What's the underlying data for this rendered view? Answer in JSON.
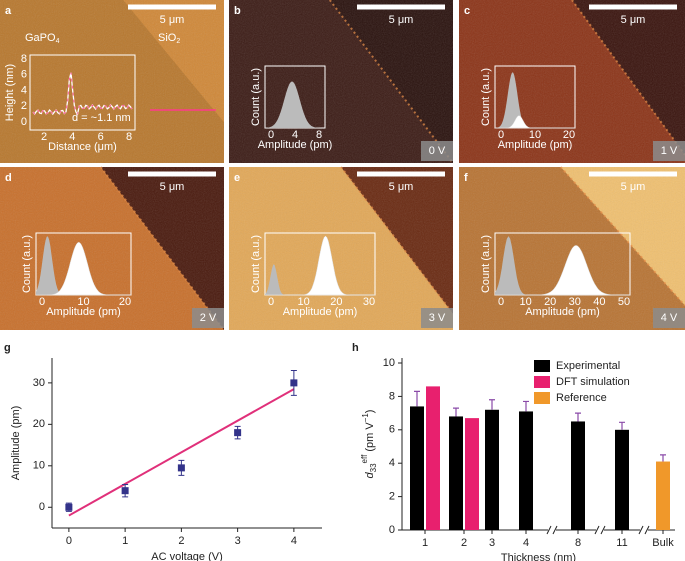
{
  "panels": [
    {
      "letter": "a",
      "scale_bar": "5 μm",
      "labels": [
        "GaPO",
        "4",
        "SiO",
        "2"
      ],
      "inset": {
        "y_label": "Height (nm)",
        "x_label": "Distance (μm)",
        "yticks": [
          "0",
          "2",
          "4",
          "6",
          "8"
        ],
        "xticks": [
          "2",
          "4",
          "6",
          "8"
        ],
        "note": "d = ~1.1 nm"
      }
    },
    {
      "letter": "b",
      "scale_bar": "5 μm",
      "voltage": "0 V",
      "inset": {
        "y_label": "Count (a.u.)",
        "x_label": "Amplitude (pm)",
        "xticks": [
          "0",
          "4",
          "8"
        ]
      }
    },
    {
      "letter": "c",
      "scale_bar": "5 μm",
      "voltage": "1 V",
      "inset": {
        "y_label": "Count (a.u.)",
        "x_label": "Amplitude (pm)",
        "xticks": [
          "0",
          "10",
          "20"
        ]
      }
    },
    {
      "letter": "d",
      "scale_bar": "5 μm",
      "voltage": "2 V",
      "inset": {
        "y_label": "Count (a.u.)",
        "x_label": "Amplitude (pm)",
        "xticks": [
          "0",
          "10",
          "20"
        ]
      }
    },
    {
      "letter": "e",
      "scale_bar": "5 μm",
      "voltage": "3 V",
      "inset": {
        "y_label": "Count (a.u.)",
        "x_label": "Amplitude (pm)",
        "xticks": [
          "0",
          "10",
          "20",
          "30"
        ]
      }
    },
    {
      "letter": "f",
      "scale_bar": "5 μm",
      "voltage": "4 V",
      "inset": {
        "y_label": "Count (a.u.)",
        "x_label": "Amplitude (pm)",
        "xticks": [
          "0",
          "10",
          "20",
          "30",
          "40",
          "50"
        ]
      }
    }
  ],
  "chart_data": [
    {
      "type": "scatter",
      "letter": "g",
      "x": [
        0,
        1,
        2,
        3,
        4
      ],
      "series": [
        {
          "color": "#33338a",
          "values": [
            0,
            4,
            9.5,
            18,
            30
          ],
          "errors": [
            1,
            1.5,
            1.8,
            1.5,
            3
          ]
        }
      ],
      "fit": {
        "color": "#e0307a",
        "x": [
          0,
          4
        ],
        "values": [
          -2,
          28.5
        ]
      },
      "xlim": [
        -0.3,
        4.5
      ],
      "ylim": [
        -5,
        36
      ],
      "xticks": [
        0,
        1,
        2,
        3,
        4
      ],
      "yticks": [
        0,
        10,
        20,
        30
      ],
      "x_label": "AC voltage (V)",
      "y_label": "Amplitude (pm)"
    },
    {
      "type": "bar",
      "letter": "h",
      "categories": [
        "1",
        "2",
        "3",
        "4",
        "8",
        "11",
        "Bulk"
      ],
      "series": [
        {
          "name": "Experimental",
          "color": "#000000",
          "values": [
            7.4,
            6.8,
            7.2,
            7.1,
            6.5,
            6.0,
            null
          ],
          "errors": [
            0.9,
            0.5,
            0.6,
            0.6,
            0.5,
            0.45,
            null
          ]
        },
        {
          "name": "DFT simulation",
          "color": "#e8206e",
          "values": [
            8.6,
            6.7,
            null,
            null,
            null,
            null,
            null
          ]
        },
        {
          "name": "Reference",
          "color": "#f0982a",
          "values": [
            null,
            null,
            null,
            null,
            null,
            null,
            4.1
          ],
          "errors": [
            null,
            null,
            null,
            null,
            null,
            null,
            0.4
          ]
        }
      ],
      "ylim": [
        0,
        10.3
      ],
      "yticks": [
        0,
        2,
        4,
        6,
        8,
        10
      ],
      "legend": "upper right",
      "x_label": "Thickness (nm)",
      "y_label_parts": [
        "d",
        "33",
        "eff",
        " (pm V",
        "−1",
        ")"
      ]
    }
  ]
}
